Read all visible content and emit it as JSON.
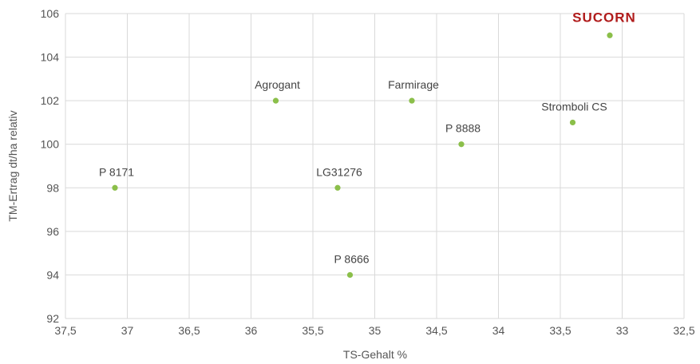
{
  "chart_data": {
    "type": "scatter",
    "xlabel": "TS-Gehalt %",
    "ylabel": "TM-Ertrag dt/ha relativ",
    "xlim": [
      37.5,
      32.5
    ],
    "x_reversed": true,
    "ylim": [
      92,
      106
    ],
    "xticks": [
      "37,5",
      "37",
      "36,5",
      "36",
      "35,5",
      "35",
      "34,5",
      "34",
      "33,5",
      "33",
      "32,5"
    ],
    "yticks": [
      "92",
      "94",
      "96",
      "98",
      "100",
      "102",
      "104",
      "106"
    ],
    "grid": true,
    "marker_color": "#8bbf4a",
    "brand_color": "#b01b1b",
    "points": [
      {
        "label": "P 8171",
        "x": 37.1,
        "y": 98
      },
      {
        "label": "Agrogant",
        "x": 35.8,
        "y": 102
      },
      {
        "label": "LG31276",
        "x": 35.3,
        "y": 98
      },
      {
        "label": "P 8666",
        "x": 35.2,
        "y": 94
      },
      {
        "label": "Farmirage",
        "x": 34.7,
        "y": 102
      },
      {
        "label": "P 8888",
        "x": 34.3,
        "y": 100
      },
      {
        "label": "Stromboli CS",
        "x": 33.4,
        "y": 101
      },
      {
        "label": "SUCORN",
        "x": 33.1,
        "y": 105,
        "highlight": true
      }
    ]
  }
}
